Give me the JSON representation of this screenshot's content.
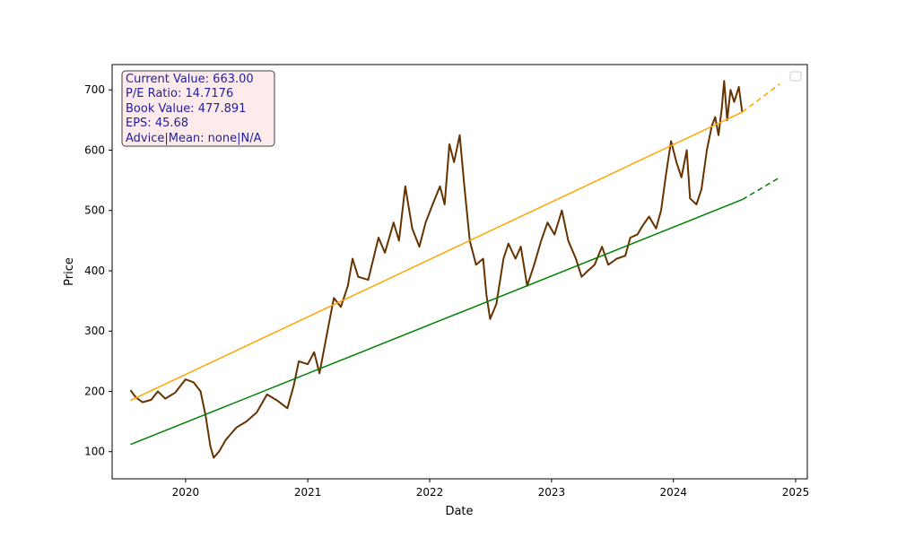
{
  "chart_data": {
    "type": "line",
    "title": "",
    "xlabel": "Date",
    "ylabel": "Price",
    "xlim": [
      "2019-05-26",
      "2025-02-05"
    ],
    "ylim": [
      55,
      742
    ],
    "x_ticks": [
      "2020-01-01",
      "2021-01-01",
      "2022-01-01",
      "2023-01-01",
      "2024-01-01",
      "2025-01-01"
    ],
    "x_tick_labels": [
      "2020",
      "2021",
      "2022",
      "2023",
      "2024",
      "2025"
    ],
    "y_ticks": [
      100,
      200,
      300,
      400,
      500,
      600,
      700
    ],
    "y_tick_labels": [
      "100",
      "200",
      "300",
      "400",
      "500",
      "600",
      "700"
    ],
    "grid": false,
    "legend": {
      "placement": "top-right",
      "entries": []
    },
    "annotation_box": {
      "placement": "top-left",
      "background": "#fdeaea",
      "border": "#404040",
      "text_color": "#1f1f9e",
      "lines": [
        "Current Value: 663.00",
        "P/E Ratio: 14.7176",
        "Book Value: 477.891",
        "EPS: 45.68",
        "Advice|Mean: none|N/A"
      ]
    },
    "series": [
      {
        "color": "#663300",
        "style": "solid",
        "points": [
          [
            "2019-07-20",
            202
          ],
          [
            "2019-08-05",
            190
          ],
          [
            "2019-08-25",
            182
          ],
          [
            "2019-09-20",
            186
          ],
          [
            "2019-10-10",
            200
          ],
          [
            "2019-11-01",
            188
          ],
          [
            "2019-12-01",
            198
          ],
          [
            "2020-01-01",
            220
          ],
          [
            "2020-01-25",
            215
          ],
          [
            "2020-02-15",
            200
          ],
          [
            "2020-03-01",
            160
          ],
          [
            "2020-03-15",
            110
          ],
          [
            "2020-03-25",
            90
          ],
          [
            "2020-04-10",
            100
          ],
          [
            "2020-05-01",
            120
          ],
          [
            "2020-06-01",
            140
          ],
          [
            "2020-07-01",
            150
          ],
          [
            "2020-08-01",
            165
          ],
          [
            "2020-09-01",
            195
          ],
          [
            "2020-10-01",
            185
          ],
          [
            "2020-11-01",
            172
          ],
          [
            "2020-11-20",
            210
          ],
          [
            "2020-12-05",
            250
          ],
          [
            "2021-01-01",
            245
          ],
          [
            "2021-01-20",
            265
          ],
          [
            "2021-02-05",
            230
          ],
          [
            "2021-03-01",
            300
          ],
          [
            "2021-03-20",
            355
          ],
          [
            "2021-04-10",
            340
          ],
          [
            "2021-05-01",
            375
          ],
          [
            "2021-05-15",
            420
          ],
          [
            "2021-06-01",
            390
          ],
          [
            "2021-07-01",
            385
          ],
          [
            "2021-08-01",
            455
          ],
          [
            "2021-08-20",
            430
          ],
          [
            "2021-09-15",
            480
          ],
          [
            "2021-10-01",
            450
          ],
          [
            "2021-10-20",
            540
          ],
          [
            "2021-11-10",
            470
          ],
          [
            "2021-12-01",
            440
          ],
          [
            "2021-12-20",
            480
          ],
          [
            "2022-01-10",
            510
          ],
          [
            "2022-02-01",
            540
          ],
          [
            "2022-02-15",
            510
          ],
          [
            "2022-03-01",
            610
          ],
          [
            "2022-03-15",
            580
          ],
          [
            "2022-04-01",
            625
          ],
          [
            "2022-04-15",
            540
          ],
          [
            "2022-05-01",
            450
          ],
          [
            "2022-05-20",
            410
          ],
          [
            "2022-06-10",
            420
          ],
          [
            "2022-06-20",
            360
          ],
          [
            "2022-07-01",
            320
          ],
          [
            "2022-07-20",
            345
          ],
          [
            "2022-08-10",
            420
          ],
          [
            "2022-08-25",
            445
          ],
          [
            "2022-09-15",
            420
          ],
          [
            "2022-10-01",
            440
          ],
          [
            "2022-10-20",
            375
          ],
          [
            "2022-11-10",
            410
          ],
          [
            "2022-12-01",
            450
          ],
          [
            "2022-12-20",
            480
          ],
          [
            "2023-01-10",
            460
          ],
          [
            "2023-02-01",
            500
          ],
          [
            "2023-02-20",
            450
          ],
          [
            "2023-03-15",
            420
          ],
          [
            "2023-04-01",
            390
          ],
          [
            "2023-04-20",
            400
          ],
          [
            "2023-05-10",
            410
          ],
          [
            "2023-06-01",
            440
          ],
          [
            "2023-06-20",
            410
          ],
          [
            "2023-07-15",
            420
          ],
          [
            "2023-08-10",
            425
          ],
          [
            "2023-08-25",
            455
          ],
          [
            "2023-09-15",
            460
          ],
          [
            "2023-10-01",
            475
          ],
          [
            "2023-10-20",
            490
          ],
          [
            "2023-11-10",
            470
          ],
          [
            "2023-11-25",
            500
          ],
          [
            "2023-12-10",
            560
          ],
          [
            "2023-12-25",
            615
          ],
          [
            "2024-01-10",
            580
          ],
          [
            "2024-01-25",
            555
          ],
          [
            "2024-02-10",
            600
          ],
          [
            "2024-02-20",
            520
          ],
          [
            "2024-03-10",
            510
          ],
          [
            "2024-03-25",
            535
          ],
          [
            "2024-04-10",
            600
          ],
          [
            "2024-04-25",
            640
          ],
          [
            "2024-05-05",
            655
          ],
          [
            "2024-05-15",
            625
          ],
          [
            "2024-05-25",
            670
          ],
          [
            "2024-06-01",
            715
          ],
          [
            "2024-06-10",
            650
          ],
          [
            "2024-06-20",
            700
          ],
          [
            "2024-07-01",
            680
          ],
          [
            "2024-07-15",
            705
          ],
          [
            "2024-07-25",
            663
          ]
        ]
      },
      {
        "color": "#ffa500",
        "style": "solid",
        "points": [
          [
            "2019-07-20",
            185
          ],
          [
            "2024-07-25",
            663
          ]
        ]
      },
      {
        "color": "#ffa500",
        "style": "dashed",
        "points": [
          [
            "2024-07-25",
            663
          ],
          [
            "2024-11-15",
            710
          ]
        ]
      },
      {
        "color": "#008000",
        "style": "solid",
        "points": [
          [
            "2019-07-20",
            112
          ],
          [
            "2024-07-25",
            518
          ]
        ]
      },
      {
        "color": "#008000",
        "style": "dashed",
        "points": [
          [
            "2024-07-25",
            518
          ],
          [
            "2024-11-15",
            555
          ]
        ]
      }
    ]
  }
}
